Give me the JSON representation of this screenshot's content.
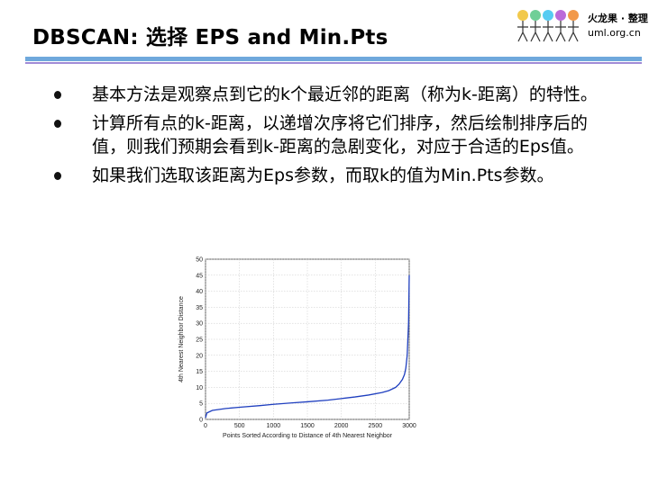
{
  "slide": {
    "title": "DBSCAN: 选择 EPS and Min.Pts",
    "logo": {
      "line1": "火龙果 · 整理",
      "line2": "uml.org.cn"
    },
    "bullets": [
      "基本方法是观察点到它的k个最近邻的距离（称为k-距离）的特性。",
      "计算所有点的k-距离，以递增次序将它们排序，然后绘制排序后的值，则我们预期会看到k-距离的急剧变化，对应于合适的Eps值。",
      "如果我们选取该距离为Eps参数，而取k的值为Min.Pts参数。"
    ]
  },
  "chart_data": {
    "type": "line",
    "xlabel": "Points Sorted According to Distance of 4th Nearest Neighbor",
    "ylabel": "4th Nearest Neighbor Distance",
    "xlim": [
      0,
      3000
    ],
    "ylim": [
      0,
      50
    ],
    "xticks": [
      0,
      500,
      1000,
      1500,
      2000,
      2500,
      3000
    ],
    "yticks": [
      0,
      5,
      10,
      15,
      20,
      25,
      30,
      35,
      40,
      45,
      50
    ],
    "grid": true,
    "series_color": "#1f3fbf",
    "x": [
      0,
      20,
      100,
      300,
      500,
      800,
      1000,
      1300,
      1500,
      1800,
      2000,
      2200,
      2400,
      2600,
      2700,
      2800,
      2850,
      2900,
      2930,
      2950,
      2970,
      2990,
      3000
    ],
    "y": [
      0.5,
      2,
      2.8,
      3.4,
      3.8,
      4.3,
      4.7,
      5.2,
      5.5,
      6.0,
      6.5,
      7.0,
      7.6,
      8.4,
      9.0,
      10.0,
      11.0,
      12.5,
      14.0,
      16.0,
      20.0,
      30.0,
      45.0
    ]
  }
}
